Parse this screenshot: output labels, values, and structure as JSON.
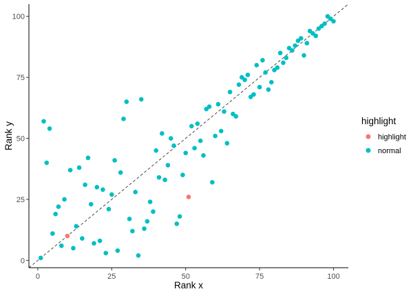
{
  "chart_data": {
    "type": "scatter",
    "title": "",
    "xlabel": "Rank x",
    "ylabel": "Rank y",
    "xlim": [
      -3,
      105
    ],
    "ylim": [
      -3,
      105
    ],
    "x_ticks": [
      0,
      25,
      50,
      75,
      100
    ],
    "y_ticks": [
      0,
      25,
      50,
      75,
      100
    ],
    "grid": false,
    "reference_line": {
      "slope": 1,
      "intercept": 0,
      "style": "dashed",
      "color": "#333333"
    },
    "legend": {
      "title": "highlight",
      "position": "right",
      "entries": [
        {
          "label": "highlight",
          "color": "#F8766D"
        },
        {
          "label": "normal",
          "color": "#00BFC4"
        }
      ]
    },
    "series": [
      {
        "name": "highlight",
        "color": "#F8766D",
        "points": [
          [
            10,
            10
          ],
          [
            51,
            26
          ]
        ]
      },
      {
        "name": "normal",
        "color": "#00BFC4",
        "points": [
          [
            1,
            1
          ],
          [
            2,
            57
          ],
          [
            3,
            40
          ],
          [
            4,
            54
          ],
          [
            5,
            11
          ],
          [
            6,
            19
          ],
          [
            7,
            22
          ],
          [
            8,
            6
          ],
          [
            9,
            25
          ],
          [
            11,
            37
          ],
          [
            12,
            5
          ],
          [
            13,
            14
          ],
          [
            14,
            38
          ],
          [
            15,
            9
          ],
          [
            16,
            31
          ],
          [
            17,
            42
          ],
          [
            18,
            23
          ],
          [
            19,
            7
          ],
          [
            20,
            30
          ],
          [
            21,
            8
          ],
          [
            22,
            29
          ],
          [
            23,
            3
          ],
          [
            24,
            21
          ],
          [
            25,
            27
          ],
          [
            26,
            41
          ],
          [
            27,
            4
          ],
          [
            28,
            36
          ],
          [
            29,
            58
          ],
          [
            30,
            65
          ],
          [
            31,
            17
          ],
          [
            32,
            12
          ],
          [
            33,
            28
          ],
          [
            34,
            2
          ],
          [
            35,
            66
          ],
          [
            36,
            13
          ],
          [
            37,
            16
          ],
          [
            38,
            24
          ],
          [
            39,
            20
          ],
          [
            40,
            45
          ],
          [
            41,
            34
          ],
          [
            42,
            52
          ],
          [
            43,
            33
          ],
          [
            44,
            39
          ],
          [
            45,
            50
          ],
          [
            46,
            47
          ],
          [
            47,
            15
          ],
          [
            48,
            18
          ],
          [
            49,
            35
          ],
          [
            50,
            44
          ],
          [
            52,
            55
          ],
          [
            53,
            46
          ],
          [
            54,
            56
          ],
          [
            55,
            49
          ],
          [
            56,
            43
          ],
          [
            57,
            62
          ],
          [
            58,
            63
          ],
          [
            59,
            32
          ],
          [
            60,
            51
          ],
          [
            61,
            64
          ],
          [
            62,
            53
          ],
          [
            63,
            61
          ],
          [
            64,
            48
          ],
          [
            65,
            69
          ],
          [
            66,
            60
          ],
          [
            67,
            59
          ],
          [
            68,
            72
          ],
          [
            69,
            75
          ],
          [
            70,
            74
          ],
          [
            71,
            76
          ],
          [
            72,
            67
          ],
          [
            73,
            68
          ],
          [
            74,
            80
          ],
          [
            75,
            71
          ],
          [
            76,
            82
          ],
          [
            77,
            77
          ],
          [
            78,
            70
          ],
          [
            79,
            73
          ],
          [
            80,
            78
          ],
          [
            81,
            79
          ],
          [
            82,
            85
          ],
          [
            83,
            81
          ],
          [
            84,
            83
          ],
          [
            85,
            87
          ],
          [
            86,
            86
          ],
          [
            87,
            88
          ],
          [
            88,
            90
          ],
          [
            89,
            91
          ],
          [
            90,
            84
          ],
          [
            91,
            89
          ],
          [
            92,
            94
          ],
          [
            93,
            93
          ],
          [
            94,
            92
          ],
          [
            95,
            95
          ],
          [
            96,
            96
          ],
          [
            97,
            97
          ],
          [
            98,
            100
          ],
          [
            99,
            99
          ],
          [
            100,
            98
          ]
        ]
      }
    ]
  }
}
